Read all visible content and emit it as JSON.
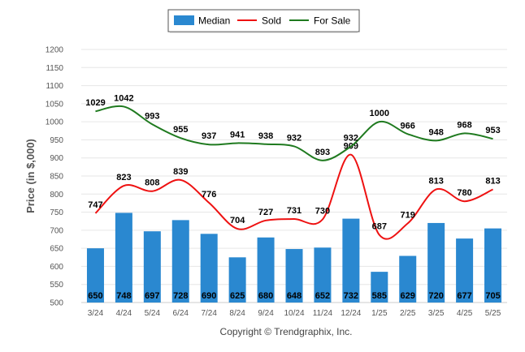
{
  "chart_data": {
    "type": "bar",
    "categories": [
      "3/24",
      "4/24",
      "5/24",
      "6/24",
      "7/24",
      "8/24",
      "9/24",
      "10/24",
      "11/24",
      "12/24",
      "1/25",
      "2/25",
      "3/25",
      "4/25",
      "5/25"
    ],
    "ylabel": "Price (in $,000)",
    "ylim": [
      500,
      1200
    ],
    "yticks": [
      500,
      550,
      600,
      650,
      700,
      750,
      800,
      850,
      900,
      950,
      1000,
      1050,
      1100,
      1150,
      1200
    ],
    "grid": true,
    "legend_position": "top-center",
    "series": [
      {
        "name": "Median",
        "kind": "bar",
        "color": "#2a88d0",
        "values": [
          650,
          748,
          697,
          728,
          690,
          625,
          680,
          648,
          652,
          732,
          585,
          629,
          720,
          677,
          705
        ]
      },
      {
        "name": "Sold",
        "kind": "line",
        "color": "#ee1111",
        "values": [
          747,
          823,
          808,
          839,
          776,
          704,
          727,
          731,
          730,
          909,
          687,
          719,
          813,
          780,
          813
        ]
      },
      {
        "name": "For Sale",
        "kind": "line",
        "color": "#1f7a1f",
        "values": [
          1029,
          1042,
          993,
          955,
          937,
          941,
          938,
          932,
          893,
          932,
          1000,
          966,
          948,
          968,
          953
        ]
      }
    ],
    "footer": "Copyright © Trendgraphix, Inc."
  }
}
